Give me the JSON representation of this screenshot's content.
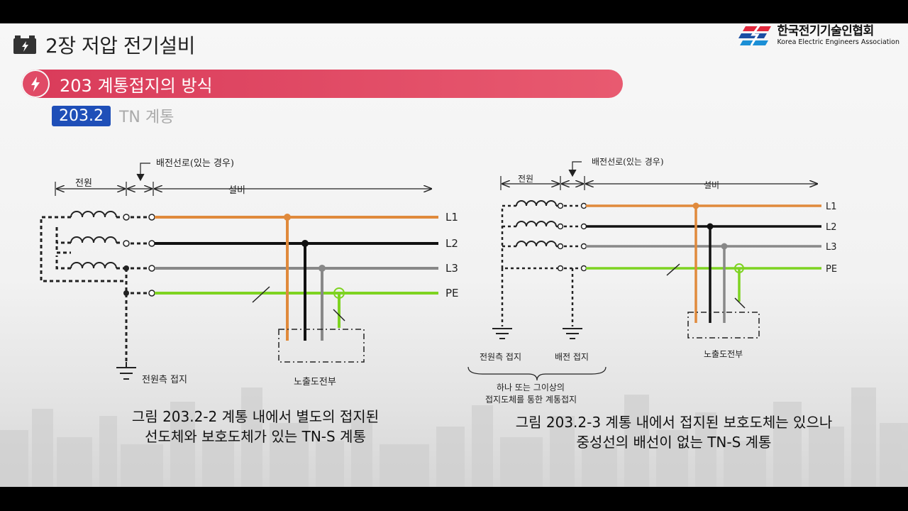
{
  "header": {
    "chapter_title": "2장 저압 전기설비",
    "logo_kr": "한국전기기술인협회",
    "logo_en": "Korea Electric Engineers Association"
  },
  "section": {
    "title": "203 계통접지의 방식"
  },
  "subsection": {
    "number": "203.2",
    "title": "TN 계통"
  },
  "figure_left": {
    "labels": {
      "source": "전원",
      "distribution": "배전선로(있는 경우)",
      "installation": "설비",
      "L1": "L1",
      "L2": "L2",
      "L3": "L3",
      "PE": "PE",
      "source_earth": "전원측 접지",
      "exposed": "노출도전부"
    },
    "caption_line1": "그림 203.2-2 계통 내에서 별도의 접지된",
    "caption_line2": "선도체와 보호도체가 있는 TN-S 계통"
  },
  "figure_right": {
    "labels": {
      "source": "전원",
      "distribution": "배전선로(있는 경우)",
      "installation": "설비",
      "L1": "L1",
      "L2": "L2",
      "L3": "L3",
      "PE": "PE",
      "source_earth": "전원측 접지",
      "dist_earth": "배전 접지",
      "note_line1": "하나 또는 그이상의",
      "note_line2": "접지도체를 통한 계통접지",
      "exposed": "노출도전부"
    },
    "caption_line1": "그림 203.2-3 계통 내에서 접지된 보호도체는 있으나",
    "caption_line2": "중성선의 배선이 없는 TN-S 계통"
  },
  "colors": {
    "L1": "#e08a3c",
    "L2": "#111111",
    "L3": "#888888",
    "PE": "#7ed321",
    "section_bar": "#e04a66",
    "subsection_badge": "#1f4fb8"
  }
}
